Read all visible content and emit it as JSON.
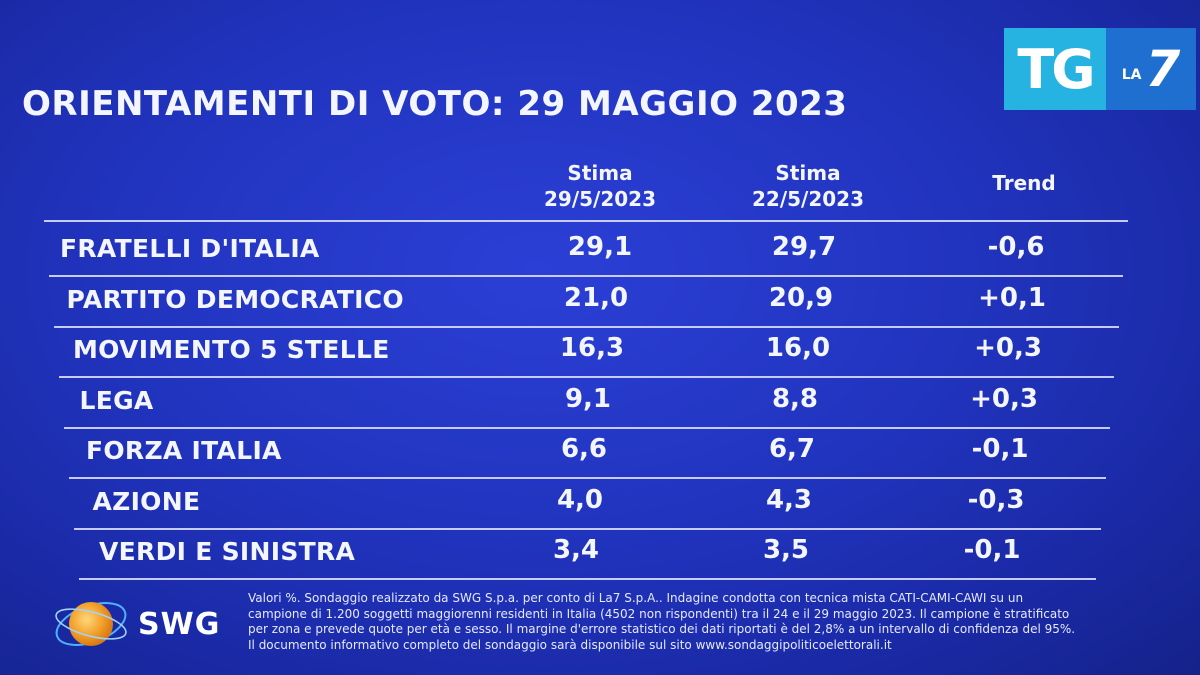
{
  "title": "ORIENTAMENTI DI VOTO: 29 MAGGIO 2023",
  "logo": {
    "tg": "TG",
    "la": "LA",
    "seven": "7"
  },
  "columns": [
    {
      "line1": "Stima",
      "line2": "29/5/2023"
    },
    {
      "line1": "Stima",
      "line2": "22/5/2023"
    },
    {
      "line1": "Trend",
      "line2": ""
    }
  ],
  "chart_data": {
    "type": "table",
    "title": "ORIENTAMENTI DI VOTO: 29 MAGGIO 2023",
    "columns": [
      "Stima 29/5/2023",
      "Stima 22/5/2023",
      "Trend"
    ],
    "rows": [
      {
        "party": "FRATELLI D'ITALIA",
        "current": "29,1",
        "previous": "29,7",
        "trend": "-0,6"
      },
      {
        "party": "PARTITO DEMOCRATICO",
        "current": "21,0",
        "previous": "20,9",
        "trend": "+0,1"
      },
      {
        "party": "MOVIMENTO 5 STELLE",
        "current": "16,3",
        "previous": "16,0",
        "trend": "+0,3"
      },
      {
        "party": "LEGA",
        "current": "9,1",
        "previous": "8,8",
        "trend": "+0,3"
      },
      {
        "party": "FORZA ITALIA",
        "current": "6,6",
        "previous": "6,7",
        "trend": "-0,1"
      },
      {
        "party": "AZIONE",
        "current": "4,0",
        "previous": "4,3",
        "trend": "-0,3"
      },
      {
        "party": "VERDI E SINISTRA",
        "current": "3,4",
        "previous": "3,5",
        "trend": "-0,1"
      }
    ]
  },
  "footer": {
    "brand": "SWG",
    "note": "Valori %. Sondaggio realizzato da SWG S.p.a. per conto di La7 S.p.A.. Indagine condotta con tecnica mista CATI-CAMI-CAWI su un campione di 1.200 soggetti maggiorenni residenti in Italia (4502 non rispondenti) tra il 24 e il 29 maggio 2023. Il campione è stratificato per zona e prevede quote per età e sesso. Il margine d'errore statistico dei dati riportati è del 2,8% a un intervallo di confidenza del 95%. Il documento informativo completo del sondaggio sarà disponibile sul sito www.sondaggipoliticoelettorali.it"
  },
  "colors": {
    "background": "#2134bf",
    "text": "#f4f6ff",
    "logo_tg": "#27b3e2",
    "logo_la7": "#1e6fd0",
    "globe": "#f2a12b"
  }
}
